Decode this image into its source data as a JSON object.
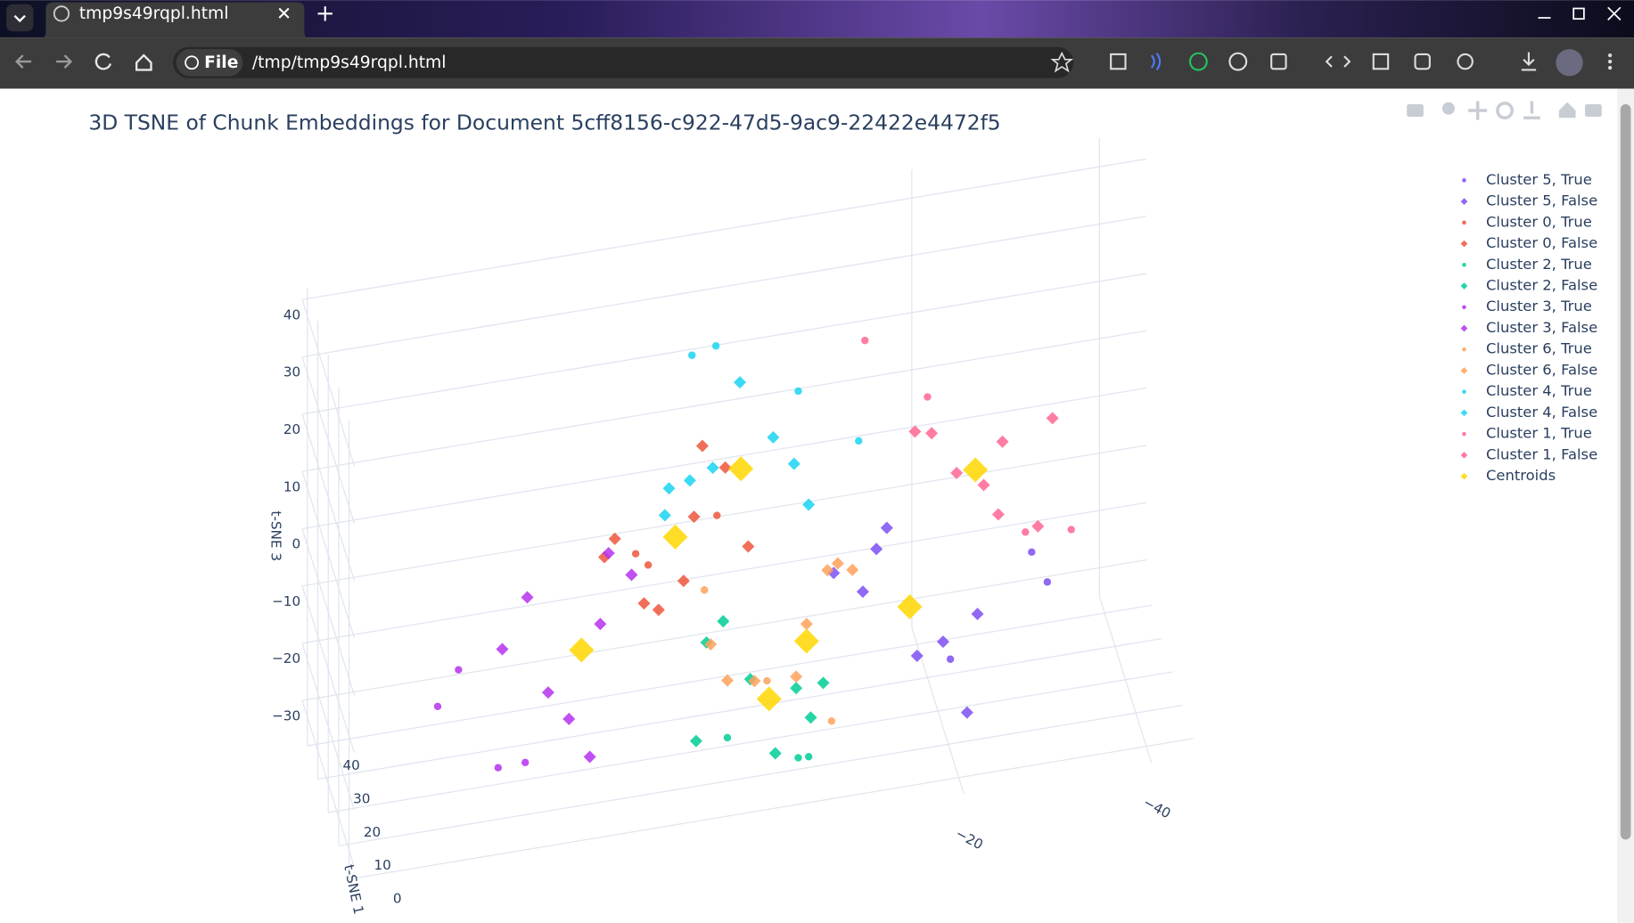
{
  "browser": {
    "tab_title": "tmp9s49rqpl.html",
    "scheme": "File",
    "url": "/tmp/tmp9s49rqpl.html"
  },
  "chart_data": {
    "type": "scatter3d",
    "title": "3D TSNE of Chunk Embeddings for Document 5cff8156-c922-47d5-9ac9-22422e4472f5",
    "x_title": "t-SNE 1",
    "z_title": "t-SNE 3",
    "xlim": [
      -5,
      45
    ],
    "ylim": [
      -45,
      45
    ],
    "zlim": [
      -35,
      45
    ],
    "xticks": [
      0,
      10,
      20,
      30,
      40
    ],
    "yticks": [
      {
        "value": -40,
        "label": "−40"
      },
      {
        "value": -20,
        "label": "−20"
      }
    ],
    "zticks": [
      40,
      30,
      20,
      10,
      0,
      {
        "value": -10,
        "label": "−10"
      },
      {
        "value": -20,
        "label": "−20"
      },
      {
        "value": -30,
        "label": "−30"
      }
    ],
    "grid": true,
    "series": [
      {
        "name": "Cluster 5, True",
        "color": "#7d4ff2",
        "symbol": "circle",
        "x": [
          20,
          14,
          26
        ],
        "y": [
          -30,
          -31,
          -22
        ],
        "z": [
          -10,
          -12,
          -30
        ]
      },
      {
        "name": "Cluster 5, False",
        "color": "#7d4ff2",
        "symbol": "diamond",
        "x": [
          20,
          15,
          25,
          18,
          22,
          30,
          10,
          24
        ],
        "y": [
          -12,
          -20,
          -14,
          -24,
          -18,
          -10,
          -22,
          -15
        ],
        "z": [
          -12,
          -20,
          -8,
          -18,
          -26,
          -14,
          -30,
          -4
        ]
      },
      {
        "name": "Cluster 0, True",
        "color": "#ef553b",
        "symbol": "circle",
        "x": [
          22,
          16,
          28
        ],
        "y": [
          12,
          4,
          10
        ],
        "z": [
          0,
          8,
          -6
        ]
      },
      {
        "name": "Cluster 0, False",
        "color": "#ef553b",
        "symbol": "diamond",
        "x": [
          20,
          14,
          26,
          18,
          24,
          30,
          12,
          22,
          16
        ],
        "y": [
          6,
          12,
          2,
          10,
          14,
          4,
          8,
          0,
          16
        ],
        "z": [
          6,
          -4,
          10,
          -8,
          2,
          12,
          0,
          -2,
          4
        ]
      },
      {
        "name": "Cluster 2, True",
        "color": "#00cc96",
        "symbol": "circle",
        "x": [
          18,
          24,
          10
        ],
        "y": [
          -6,
          2,
          -4
        ],
        "z": [
          -38,
          -36,
          -33
        ]
      },
      {
        "name": "Cluster 2, False",
        "color": "#00cc96",
        "symbol": "diamond",
        "x": [
          20,
          16,
          26,
          14,
          22,
          28,
          18,
          12
        ],
        "y": [
          0,
          -6,
          4,
          -2,
          -8,
          2,
          6,
          -4
        ],
        "z": [
          -24,
          -30,
          -20,
          -34,
          -28,
          -18,
          -32,
          -22
        ]
      },
      {
        "name": "Cluster 3, True",
        "color": "#b531ee",
        "symbol": "circle",
        "x": [
          10,
          30,
          20,
          14
        ],
        "y": [
          28,
          30,
          24,
          34
        ],
        "z": [
          -26,
          -20,
          -32,
          -16
        ]
      },
      {
        "name": "Cluster 3, False",
        "color": "#b531ee",
        "symbol": "diamond",
        "x": [
          20,
          16,
          26,
          14,
          24,
          30,
          12,
          18
        ],
        "y": [
          16,
          22,
          12,
          20,
          26,
          14,
          18,
          24
        ],
        "z": [
          -10,
          -18,
          -6,
          -22,
          -14,
          -4,
          -28,
          -2
        ]
      },
      {
        "name": "Cluster 6, True",
        "color": "#ffa15a",
        "symbol": "circle",
        "x": [
          22,
          14,
          28
        ],
        "y": [
          -2,
          -8,
          4
        ],
        "z": [
          -26,
          -30,
          -12
        ]
      },
      {
        "name": "Cluster 6, False",
        "color": "#ffa15a",
        "symbol": "diamond",
        "x": [
          20,
          16,
          26,
          12,
          24,
          30,
          18,
          22
        ],
        "y": [
          -6,
          0,
          -10,
          -4,
          2,
          -12,
          -8,
          4
        ],
        "z": [
          -16,
          -22,
          -10,
          -20,
          -26,
          -14,
          -6,
          -18
        ]
      },
      {
        "name": "Cluster 4, True",
        "color": "#19d3f3",
        "symbol": "circle",
        "x": [
          35,
          28,
          40,
          24
        ],
        "y": [
          2,
          -6,
          4,
          -12
        ],
        "z": [
          26,
          20,
          22,
          12
        ]
      },
      {
        "name": "Cluster 4, False",
        "color": "#19d3f3",
        "symbol": "diamond",
        "x": [
          20,
          16,
          26,
          14,
          24,
          30,
          12,
          18
        ],
        "y": [
          4,
          -2,
          8,
          -4,
          6,
          0,
          10,
          -6
        ],
        "z": [
          14,
          20,
          8,
          16,
          10,
          22,
          12,
          6
        ]
      },
      {
        "name": "Cluster 1, True",
        "color": "#ff6692",
        "symbol": "circle",
        "x": [
          36,
          30,
          18,
          26
        ],
        "y": [
          -14,
          -20,
          -34,
          -30
        ],
        "z": [
          22,
          14,
          -6,
          -10
        ]
      },
      {
        "name": "Cluster 1, False",
        "color": "#ff6692",
        "symbol": "diamond",
        "x": [
          20,
          16,
          26,
          14,
          24,
          30,
          12,
          18
        ],
        "y": [
          -22,
          -26,
          -20,
          -30,
          -18,
          -28,
          -24,
          -32
        ],
        "z": [
          6,
          0,
          10,
          -2,
          12,
          4,
          8,
          14
        ]
      },
      {
        "name": "Centroids",
        "color": "#ffd700",
        "symbol": "diamond",
        "size": 2,
        "x": [
          20,
          20,
          20,
          20,
          20,
          20,
          20
        ],
        "y": [
          1,
          8,
          -24,
          -17,
          -6,
          -2,
          18
        ],
        "z": [
          13,
          3,
          6,
          -16,
          -19,
          -28,
          -14
        ]
      }
    ]
  }
}
